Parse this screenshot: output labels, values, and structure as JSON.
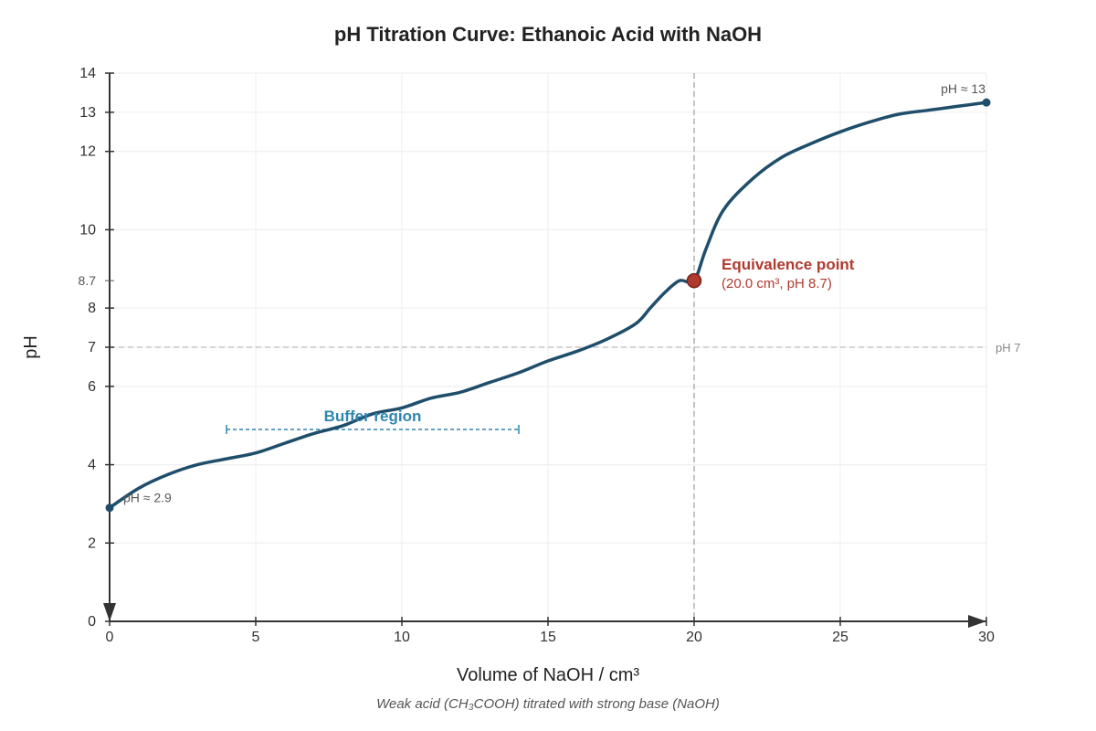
{
  "chart_data": {
    "type": "line",
    "title": "pH Titration Curve: Ethanoic Acid with NaOH",
    "xlabel": "Volume of NaOH / cm³",
    "ylabel": "pH",
    "caption": "Weak acid (CH₃COOH) titrated with strong base (NaOH)",
    "xlim": [
      0,
      30
    ],
    "ylim": [
      0,
      14
    ],
    "x_ticks": [
      0,
      5,
      10,
      15,
      20,
      25,
      30
    ],
    "y_ticks": [
      0,
      2,
      4,
      6,
      7,
      8,
      10,
      12,
      13,
      14
    ],
    "y_ticks_minor": [
      8.7
    ],
    "grid": true,
    "series": [
      {
        "color": "#1f4e6b",
        "points": [
          [
            0,
            2.9
          ],
          [
            1,
            3.4
          ],
          [
            2,
            3.75
          ],
          [
            3,
            4.0
          ],
          [
            4,
            4.15
          ],
          [
            5,
            4.3
          ],
          [
            6,
            4.55
          ],
          [
            7,
            4.8
          ],
          [
            8,
            5.0
          ],
          [
            9,
            5.3
          ],
          [
            10,
            5.45
          ],
          [
            11,
            5.7
          ],
          [
            12,
            5.85
          ],
          [
            13,
            6.1
          ],
          [
            14,
            6.35
          ],
          [
            15,
            6.65
          ],
          [
            16,
            6.9
          ],
          [
            17,
            7.2
          ],
          [
            18,
            7.6
          ],
          [
            18.5,
            8.0
          ],
          [
            19,
            8.4
          ],
          [
            19.5,
            8.7
          ],
          [
            20,
            8.7
          ],
          [
            20.4,
            9.5
          ],
          [
            21,
            10.5
          ],
          [
            22,
            11.3
          ],
          [
            23,
            11.85
          ],
          [
            24,
            12.2
          ],
          [
            25,
            12.5
          ],
          [
            26,
            12.75
          ],
          [
            27,
            12.95
          ],
          [
            28,
            13.05
          ],
          [
            29,
            13.15
          ],
          [
            30,
            13.25
          ]
        ]
      }
    ],
    "annotations": {
      "start_label": "pH ≈ 2.9",
      "end_label": "pH ≈ 13",
      "ph7_label": "pH 7",
      "ph7_value": 7,
      "buffer_label": "Buffer region",
      "buffer_range": [
        4,
        14
      ],
      "buffer_ph": 4.9,
      "buffer_color": "#2e86b0",
      "equivalence_title": "Equivalence point",
      "equivalence_detail": "(20.0 cm³, pH 8.7)",
      "equivalence_x": 20,
      "equivalence_y": 8.7,
      "equivalence_color": "#b03a2e"
    }
  }
}
